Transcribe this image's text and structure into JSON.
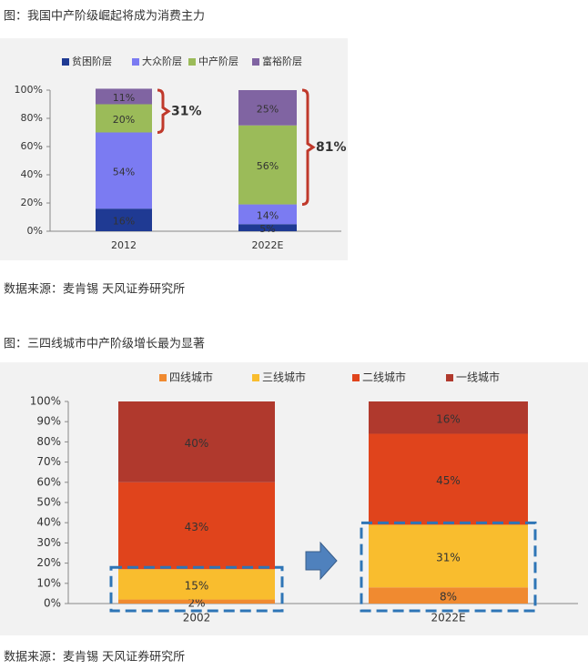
{
  "chart_data": [
    {
      "type": "stacked_bar",
      "title": "图：我国中产阶级崛起将成为消费主力",
      "source": "数据来源：麦肯锡 天风证券研究所",
      "categories": [
        "2012",
        "2022E"
      ],
      "series": [
        {
          "name": "贫困阶层",
          "color": "#1f3a93",
          "values": [
            16,
            5
          ],
          "value_labels": [
            "16%",
            "5%"
          ]
        },
        {
          "name": "大众阶层",
          "color": "#7b7bf2",
          "values": [
            54,
            14
          ],
          "value_labels": [
            "54%",
            "14%"
          ]
        },
        {
          "name": "中产阶层",
          "color": "#9bbb59",
          "values": [
            20,
            56
          ],
          "value_labels": [
            "20%",
            "56%"
          ]
        },
        {
          "name": "富裕阶层",
          "color": "#8064a2",
          "values": [
            11,
            25
          ],
          "value_labels": [
            "11%",
            "25%"
          ]
        }
      ],
      "annotations": [
        "31%",
        "81%"
      ],
      "ylim": [
        0,
        100
      ],
      "yticks": [
        {
          "value": 0,
          "label": "0%"
        },
        {
          "value": 20,
          "label": "20%"
        },
        {
          "value": 40,
          "label": "40%"
        },
        {
          "value": 60,
          "label": "60%"
        },
        {
          "value": 80,
          "label": "80%"
        },
        {
          "value": 100,
          "label": "100%"
        }
      ],
      "grid": false
    },
    {
      "type": "stacked_bar",
      "title": "图：三四线城市中产阶级增长最为显著",
      "source": "数据来源：麦肯锡 天风证券研究所",
      "categories": [
        "2002",
        "2022E"
      ],
      "series": [
        {
          "name": "四线城市",
          "color": "#f08a30",
          "values": [
            2,
            8
          ],
          "value_labels": [
            "2%",
            "8%"
          ]
        },
        {
          "name": "三线城市",
          "color": "#f9bd2e",
          "values": [
            15,
            31
          ],
          "value_labels": [
            "15%",
            "31%"
          ]
        },
        {
          "name": "二线城市",
          "color": "#e0441c",
          "values": [
            43,
            45
          ],
          "value_labels": [
            "43%",
            "45%"
          ]
        },
        {
          "name": "一线城市",
          "color": "#b0392d",
          "values": [
            40,
            16
          ],
          "value_labels": [
            "40%",
            "16%"
          ]
        }
      ],
      "ylim": [
        0,
        100
      ],
      "yticks": [
        {
          "value": 0,
          "label": "0%"
        },
        {
          "value": 10,
          "label": "10%"
        },
        {
          "value": 20,
          "label": "20%"
        },
        {
          "value": 30,
          "label": "30%"
        },
        {
          "value": 40,
          "label": "40%"
        },
        {
          "value": 50,
          "label": "50%"
        },
        {
          "value": 60,
          "label": "60%"
        },
        {
          "value": 70,
          "label": "70%"
        },
        {
          "value": 80,
          "label": "80%"
        },
        {
          "value": 90,
          "label": "90%"
        },
        {
          "value": 100,
          "label": "100%"
        }
      ],
      "grid": false
    }
  ]
}
